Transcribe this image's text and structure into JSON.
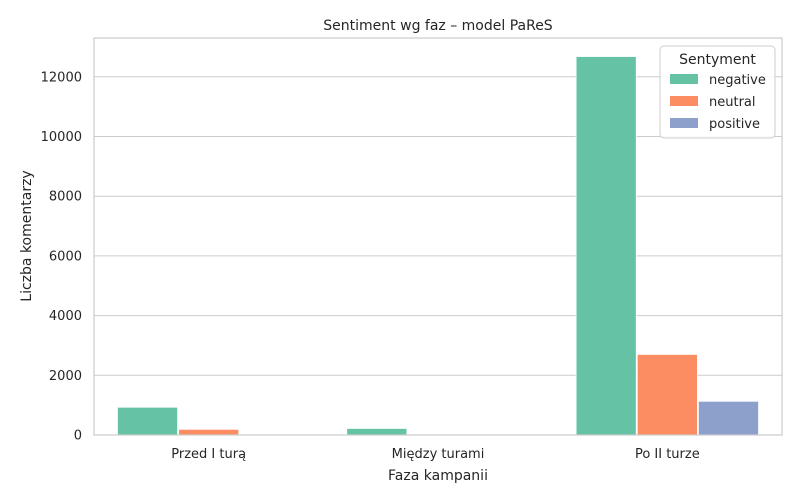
{
  "chart_data": {
    "type": "bar",
    "title": "Sentiment wg faz – model PaReS",
    "xlabel": "Faza kampanii",
    "ylabel": "Liczba komentarzy",
    "categories": [
      "Przed I turą",
      "Między turami",
      "Po II turze"
    ],
    "series": [
      {
        "name": "negative",
        "color": "#66c2a5",
        "values": [
          930,
          220,
          12680
        ]
      },
      {
        "name": "neutral",
        "color": "#fc8d62",
        "values": [
          190,
          30,
          2700
        ]
      },
      {
        "name": "positive",
        "color": "#8da0cb",
        "values": [
          30,
          10,
          1130
        ]
      }
    ],
    "ylim": [
      0,
      13300
    ],
    "yticks": [
      0,
      2000,
      4000,
      6000,
      8000,
      10000,
      12000
    ],
    "grid": true,
    "legend": {
      "title": "Sentyment",
      "placement": "top-right"
    }
  }
}
